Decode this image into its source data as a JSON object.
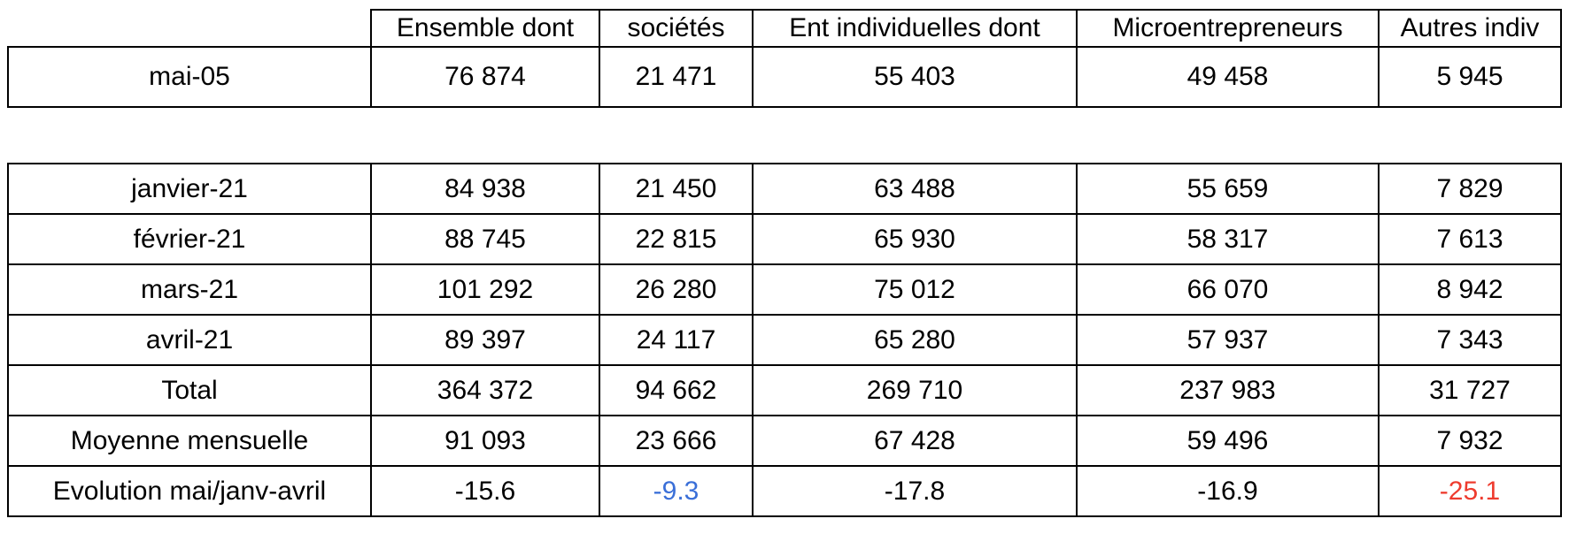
{
  "colors": {
    "background": "#ffffff",
    "border": "#000000",
    "text": "#000000",
    "accent_blue": "#3a6fd8",
    "accent_red": "#ee3b2e"
  },
  "chart_data": {
    "type": "table",
    "columns": [
      "",
      "Ensemble dont",
      "sociétés",
      "Ent individuelles dont",
      "Microentrepreneurs",
      "Autres indiv"
    ],
    "table_top": {
      "rows": [
        {
          "label": "mai-05",
          "values": [
            "76 874",
            "21 471",
            "55 403",
            "49 458",
            "5 945"
          ]
        }
      ]
    },
    "table_main": {
      "rows": [
        {
          "label": "janvier-21",
          "values": [
            "84 938",
            "21 450",
            "63 488",
            "55 659",
            "7 829"
          ]
        },
        {
          "label": "février-21",
          "values": [
            "88 745",
            "22 815",
            "65 930",
            "58 317",
            "7 613"
          ]
        },
        {
          "label": "mars-21",
          "values": [
            "101 292",
            "26 280",
            "75 012",
            "66 070",
            "8 942"
          ]
        },
        {
          "label": "avril-21",
          "values": [
            "89 397",
            "24 117",
            "65 280",
            "57 937",
            "7 343"
          ]
        },
        {
          "label": "Total",
          "values": [
            "364 372",
            "94 662",
            "269 710",
            "237 983",
            "31 727"
          ]
        },
        {
          "label": "Moyenne mensuelle",
          "values": [
            "91 093",
            "23 666",
            "67 428",
            "59 496",
            "7 932"
          ]
        },
        {
          "label": "Evolution mai/janv-avril",
          "values": [
            "-15.6",
            "-9.3",
            "-17.8",
            "-16.9",
            "-25.1"
          ],
          "value_colors": [
            "default",
            "blue",
            "default",
            "default",
            "red"
          ]
        }
      ]
    }
  }
}
